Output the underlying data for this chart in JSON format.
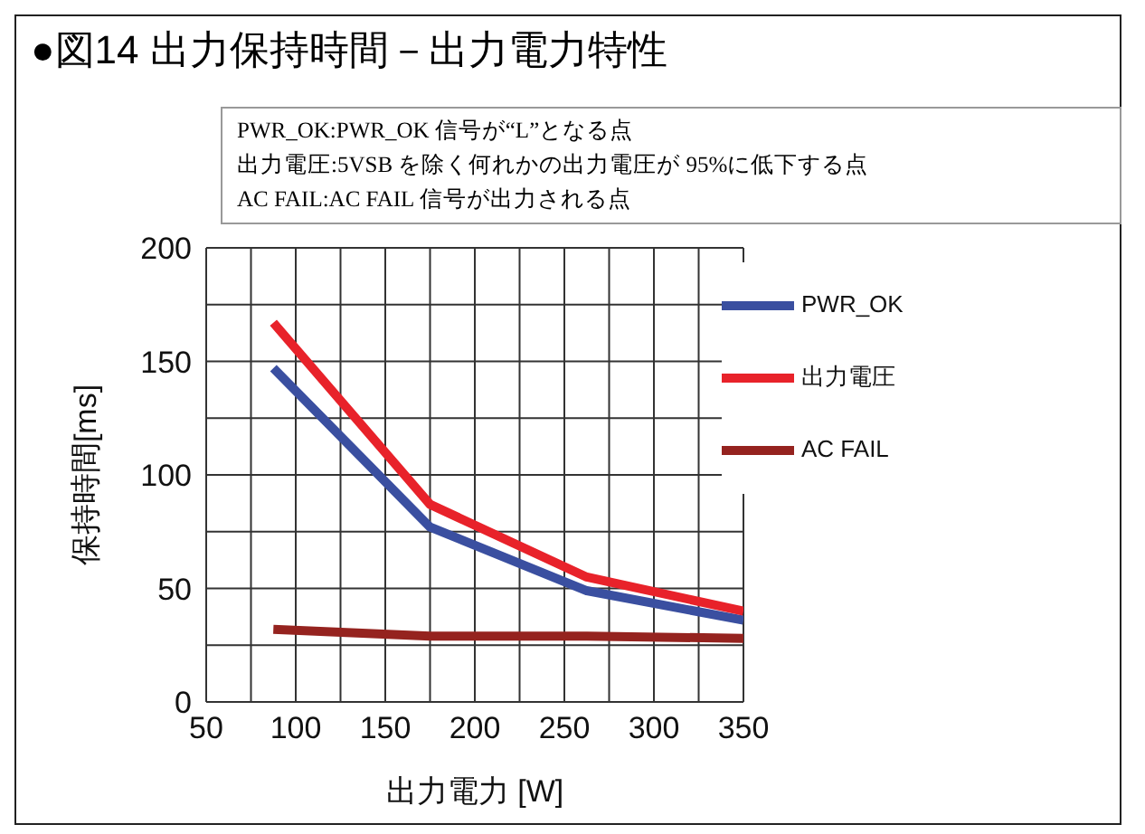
{
  "chart_data": {
    "type": "line",
    "title": "●図14 出力保持時間－出力電力特性",
    "annotations": [
      "PWR_OK:PWR_OK 信号が“L”となる点",
      "出力電圧:5VSB を除く何れかの出力電圧が 95%に低下する点",
      "AC FAIL:AC FAIL 信号が出力される点"
    ],
    "xlabel": "出力電力 [W]",
    "ylabel": "保持時間[ms]",
    "x": [
      87.5,
      175,
      262.5,
      350
    ],
    "series": [
      {
        "name": "PWR_OK",
        "color": "#3a4fa0",
        "values": [
          147,
          77,
          49,
          36
        ]
      },
      {
        "name": "出力電圧",
        "color": "#e8222a",
        "values": [
          167,
          87,
          55,
          40
        ]
      },
      {
        "name": "AC FAIL",
        "color": "#95231f",
        "values": [
          32,
          29,
          29,
          28
        ]
      }
    ],
    "xlim": [
      50,
      350
    ],
    "xticks": [
      50,
      {
        "value": 75,
        "label": null
      },
      100,
      {
        "value": 125,
        "label": null
      },
      150,
      {
        "value": 175,
        "label": null
      },
      200,
      {
        "value": 225,
        "label": null
      },
      250,
      {
        "value": 275,
        "label": null
      },
      300,
      {
        "value": 325,
        "label": null
      },
      350
    ],
    "ylim": [
      0,
      200
    ],
    "yticks": [
      0,
      {
        "value": 25,
        "label": null
      },
      50,
      {
        "value": 75,
        "label": null
      },
      100,
      {
        "value": 125,
        "label": null
      },
      150,
      {
        "value": 175,
        "label": null
      },
      200
    ],
    "grid": true,
    "legend": "top right",
    "marker": "none",
    "line_style": "solid"
  }
}
